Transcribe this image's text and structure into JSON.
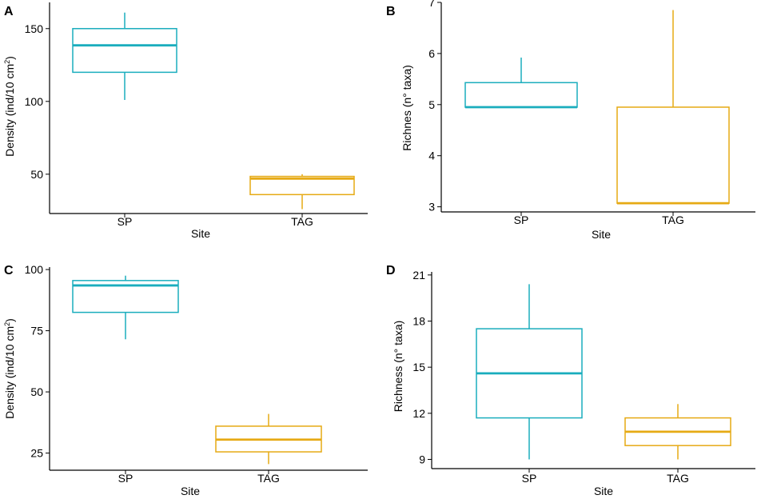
{
  "colors": {
    "SP": "#1AADBD",
    "TAG": "#E6AA14",
    "axis": "#000000"
  },
  "chart_data": [
    {
      "panel": "A",
      "type": "boxplot",
      "xlabel": "Site",
      "ylabel_main": "Density (ind/10 cm",
      "ylabel_sup": "2",
      "ylabel_tail": ")",
      "ylim": [
        23,
        168
      ],
      "yticks": [
        50,
        100,
        150
      ],
      "categories": [
        "SP",
        "TAG"
      ],
      "boxes": [
        {
          "name": "SP",
          "whisker_low": 101,
          "q1": 120,
          "median": 138.5,
          "q3": 150,
          "whisker_high": 161
        },
        {
          "name": "TAG",
          "whisker_low": 26,
          "q1": 36,
          "median": 47,
          "q3": 48.5,
          "whisker_high": 50
        }
      ]
    },
    {
      "panel": "B",
      "type": "boxplot",
      "xlabel": "Site",
      "ylabel": "Richnes (n° taxa)",
      "ylim": [
        2.9,
        7.0
      ],
      "yticks": [
        3,
        4,
        5,
        6,
        7
      ],
      "categories": [
        "SP",
        "TAG"
      ],
      "boxes": [
        {
          "name": "SP",
          "whisker_low": 4.95,
          "q1": 4.95,
          "median": 4.95,
          "q3": 5.43,
          "whisker_high": 5.92
        },
        {
          "name": "TAG",
          "whisker_low": 3.07,
          "q1": 3.07,
          "median": 3.07,
          "q3": 4.95,
          "whisker_high": 6.85
        }
      ]
    },
    {
      "panel": "C",
      "type": "boxplot",
      "xlabel": "Site",
      "ylabel_main": "Density (ind/10 cm",
      "ylabel_sup": "2",
      "ylabel_tail": ")",
      "ylim": [
        18,
        101
      ],
      "yticks": [
        25,
        50,
        75,
        100
      ],
      "categories": [
        "SP",
        "TAG"
      ],
      "boxes": [
        {
          "name": "SP",
          "whisker_low": 71.5,
          "q1": 82.5,
          "median": 93.5,
          "q3": 95.5,
          "whisker_high": 97.5
        },
        {
          "name": "TAG",
          "whisker_low": 20.5,
          "q1": 25.5,
          "median": 30.5,
          "q3": 36,
          "whisker_high": 41
        }
      ]
    },
    {
      "panel": "D",
      "type": "boxplot",
      "xlabel": "Site",
      "ylabel": "Richness (n° taxa)",
      "ylim": [
        8.4,
        21.2
      ],
      "yticks": [
        9,
        12,
        15,
        18,
        21
      ],
      "categories": [
        "SP",
        "TAG"
      ],
      "boxes": [
        {
          "name": "SP",
          "whisker_low": 9.0,
          "q1": 11.7,
          "median": 14.6,
          "q3": 17.5,
          "whisker_high": 20.4
        },
        {
          "name": "TAG",
          "whisker_low": 9.0,
          "q1": 9.9,
          "median": 10.8,
          "q3": 11.7,
          "whisker_high": 12.6
        }
      ]
    }
  ]
}
